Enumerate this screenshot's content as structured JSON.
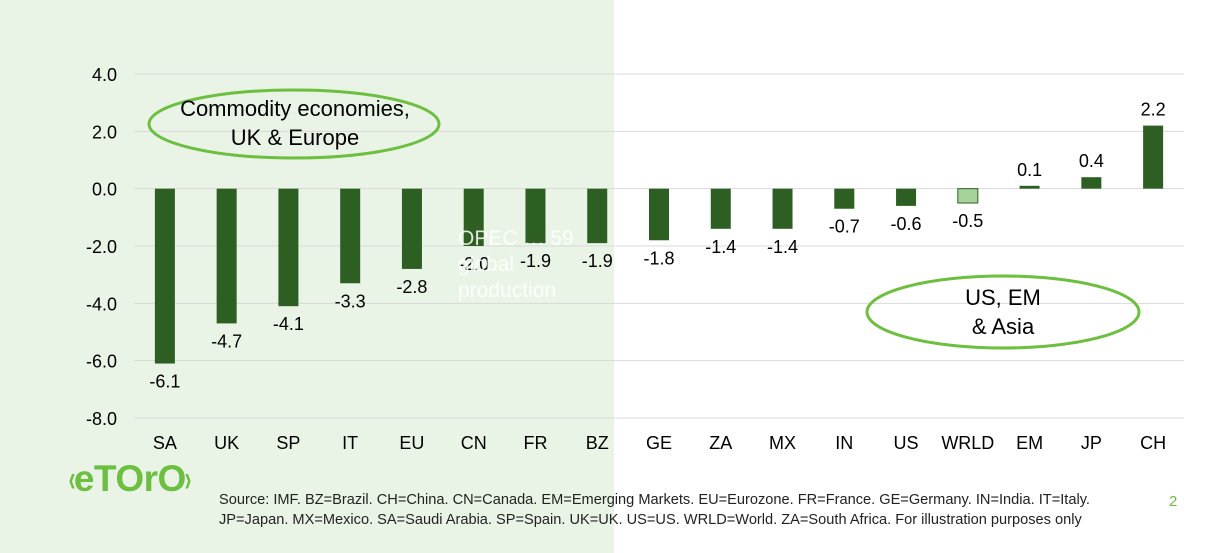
{
  "chart_data": {
    "type": "bar",
    "categories": [
      "SA",
      "UK",
      "SP",
      "IT",
      "EU",
      "CN",
      "FR",
      "BZ",
      "GE",
      "ZA",
      "MX",
      "IN",
      "US",
      "WRLD",
      "EM",
      "JP",
      "CH"
    ],
    "values": [
      -6.1,
      -4.7,
      -4.1,
      -3.3,
      -2.8,
      -2.0,
      -1.9,
      -1.9,
      -1.8,
      -1.4,
      -1.4,
      -0.7,
      -0.6,
      -0.5,
      0.1,
      0.4,
      2.2
    ],
    "value_labels": [
      "-6.1",
      "-4.7",
      "-4.1",
      "-3.3",
      "-2.8",
      "-2.0",
      "-1.9",
      "-1.9",
      "-1.8",
      "-1.4",
      "-1.4",
      "-0.7",
      "-0.6",
      "-0.5",
      "0.1",
      "0.4",
      "2.2"
    ],
    "highlighted_category": "WRLD",
    "ylim": [
      -8,
      4
    ],
    "yticks": [
      "4.0",
      "2.0",
      "0.0",
      "-2.0",
      "-4.0",
      "-6.0",
      "-8.0"
    ],
    "grid": true,
    "title": "",
    "xlabel": "",
    "ylabel": "",
    "colors": {
      "bar": "#2d5e22",
      "highlight_fill": "#a6d39a",
      "highlight_stroke": "#2d5e22",
      "grid": "#d9d9d9",
      "accent": "#6cbf3f",
      "panel": "#eaf4e6"
    },
    "annotations": [
      {
        "lines": [
          "Commodity economies,",
          "UK & Europe"
        ]
      },
      {
        "lines": [
          "US, EM",
          "& Asia"
        ]
      }
    ]
  },
  "ghost_text": "OPEC … 59\nglobal\nproduction",
  "logo": "eToro",
  "footer": {
    "source": "Source: IMF. BZ=Brazil. CH=China. CN=Canada. EM=Emerging Markets. EU=Eurozone. FR=France. GE=Germany. IN=India. IT=Italy. JP=Japan. MX=Mexico. SA=Saudi Arabia. SP=Spain. UK=UK. US=US. WRLD=World. ZA=South Africa. For illustration purposes only",
    "page_number": "2"
  }
}
